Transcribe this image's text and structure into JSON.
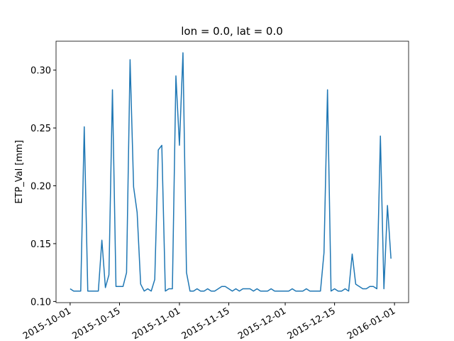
{
  "chart_data": {
    "type": "line",
    "title": "lon = 0.0, lat = 0.0",
    "y_label": "ETP_Val [mm]",
    "x": [
      "2015-10-01",
      "2015-10-02",
      "2015-10-03",
      "2015-10-04",
      "2015-10-05",
      "2015-10-06",
      "2015-10-07",
      "2015-10-08",
      "2015-10-09",
      "2015-10-10",
      "2015-10-11",
      "2015-10-12",
      "2015-10-13",
      "2015-10-14",
      "2015-10-15",
      "2015-10-16",
      "2015-10-17",
      "2015-10-18",
      "2015-10-19",
      "2015-10-20",
      "2015-10-21",
      "2015-10-22",
      "2015-10-23",
      "2015-10-24",
      "2015-10-25",
      "2015-10-26",
      "2015-10-27",
      "2015-10-28",
      "2015-10-29",
      "2015-10-30",
      "2015-10-31",
      "2015-11-01",
      "2015-11-02",
      "2015-11-03",
      "2015-11-04",
      "2015-11-05",
      "2015-11-06",
      "2015-11-07",
      "2015-11-08",
      "2015-11-09",
      "2015-11-10",
      "2015-11-11",
      "2015-11-12",
      "2015-11-13",
      "2015-11-14",
      "2015-11-15",
      "2015-11-16",
      "2015-11-17",
      "2015-11-18",
      "2015-11-19",
      "2015-11-20",
      "2015-11-21",
      "2015-11-22",
      "2015-11-23",
      "2015-11-24",
      "2015-11-25",
      "2015-11-26",
      "2015-11-27",
      "2015-11-28",
      "2015-11-29",
      "2015-11-30",
      "2015-12-01",
      "2015-12-02",
      "2015-12-03",
      "2015-12-04",
      "2015-12-05",
      "2015-12-06",
      "2015-12-07",
      "2015-12-08",
      "2015-12-09",
      "2015-12-10",
      "2015-12-11",
      "2015-12-12",
      "2015-12-13",
      "2015-12-14",
      "2015-12-15",
      "2015-12-16",
      "2015-12-17",
      "2015-12-18",
      "2015-12-19",
      "2015-12-20",
      "2015-12-21",
      "2015-12-22",
      "2015-12-23",
      "2015-12-24",
      "2015-12-25",
      "2015-12-26",
      "2015-12-27",
      "2015-12-28",
      "2015-12-29",
      "2015-12-30",
      "2015-12-31"
    ],
    "series": [
      {
        "color": "#1f77b4",
        "values": [
          0.111,
          0.109,
          0.109,
          0.109,
          0.251,
          0.109,
          0.109,
          0.109,
          0.109,
          0.153,
          0.112,
          0.123,
          0.283,
          0.113,
          0.113,
          0.113,
          0.125,
          0.309,
          0.199,
          0.177,
          0.115,
          0.109,
          0.111,
          0.109,
          0.119,
          0.231,
          0.235,
          0.109,
          0.111,
          0.111,
          0.295,
          0.235,
          0.315,
          0.125,
          0.109,
          0.109,
          0.111,
          0.109,
          0.109,
          0.111,
          0.109,
          0.109,
          0.111,
          0.113,
          0.113,
          0.111,
          0.109,
          0.111,
          0.109,
          0.111,
          0.111,
          0.111,
          0.109,
          0.111,
          0.109,
          0.109,
          0.109,
          0.111,
          0.109,
          0.109,
          0.109,
          0.109,
          0.109,
          0.111,
          0.109,
          0.109,
          0.109,
          0.111,
          0.109,
          0.109,
          0.109,
          0.109,
          0.142,
          0.283,
          0.109,
          0.111,
          0.109,
          0.109,
          0.111,
          0.109,
          0.141,
          0.115,
          0.113,
          0.111,
          0.111,
          0.113,
          0.113,
          0.111,
          0.243,
          0.111,
          0.183,
          0.137
        ]
      }
    ],
    "xlim": [
      "2015-09-27",
      "2016-01-05"
    ],
    "xticks": [
      "2015-10-01",
      "2015-10-15",
      "2015-11-01",
      "2015-11-15",
      "2015-12-01",
      "2015-12-15",
      "2016-01-01"
    ],
    "ylim": [
      0.099,
      0.325
    ],
    "yticks": [
      {
        "value": 0.1,
        "label": "0.10"
      },
      {
        "value": 0.15,
        "label": "0.15"
      },
      {
        "value": 0.2,
        "label": "0.20"
      },
      {
        "value": 0.25,
        "label": "0.25"
      },
      {
        "value": 0.3,
        "label": "0.30"
      }
    ]
  }
}
